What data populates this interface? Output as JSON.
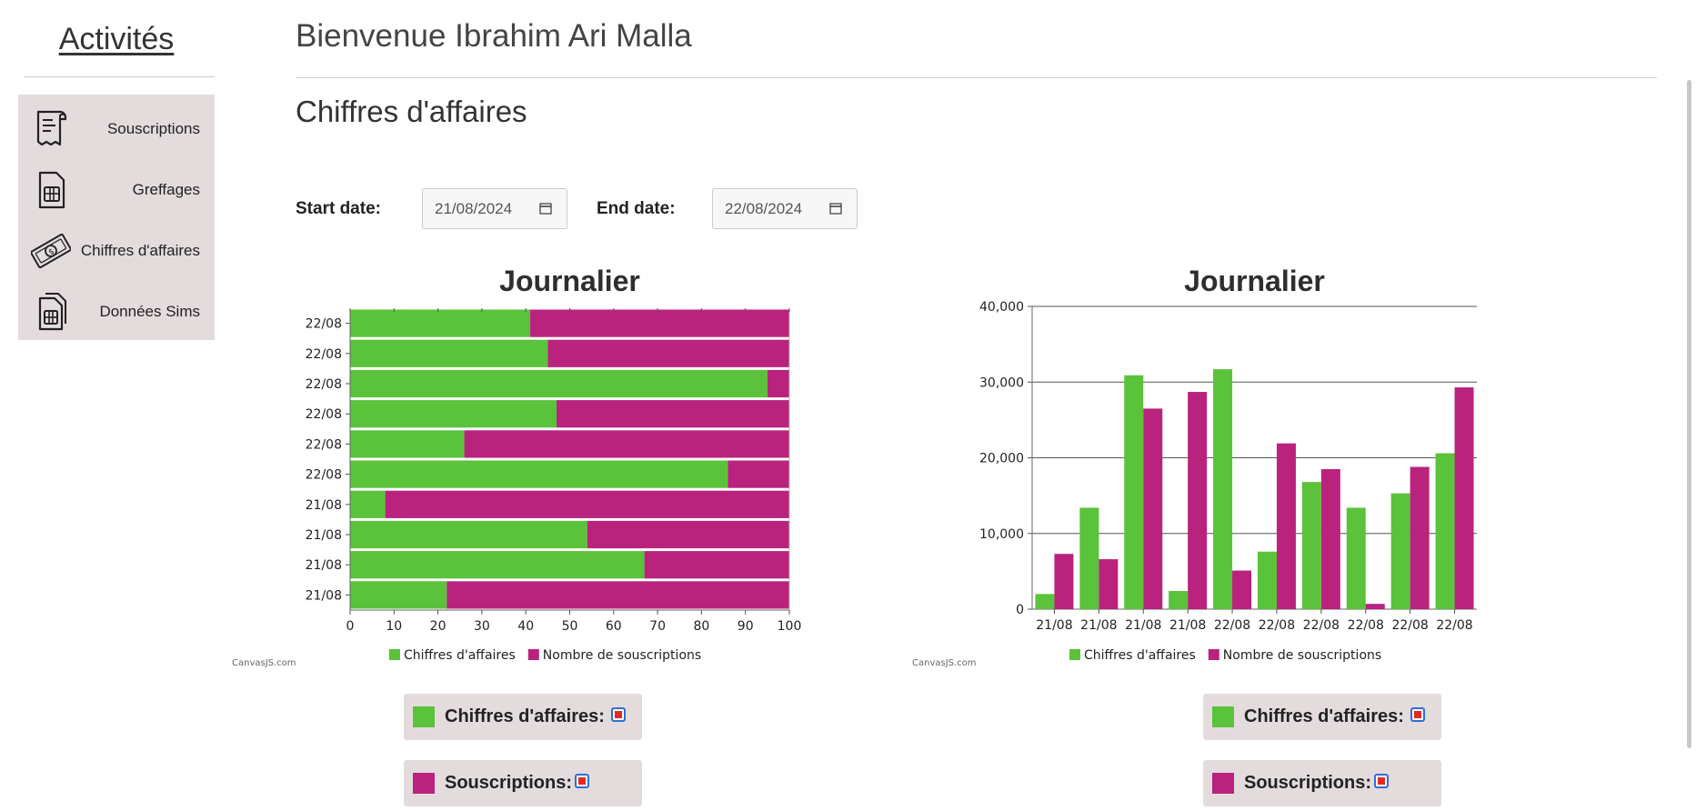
{
  "sidebar": {
    "title": "Activités",
    "items": [
      {
        "label": "Souscriptions",
        "icon": "receipt-icon"
      },
      {
        "label": "Greffages",
        "icon": "sim-card-icon"
      },
      {
        "label": "Chiffres d'affaires",
        "icon": "money-icon"
      },
      {
        "label": "Données Sims",
        "icon": "sim-cards-icon"
      }
    ]
  },
  "header": {
    "welcome": "Bienvenue Ibrahim Ari Malla"
  },
  "main": {
    "title": "Chiffres d'affaires",
    "start_label": "Start date:",
    "start_value": "21/08/2024",
    "end_label": "End date:",
    "end_value": "22/08/2024"
  },
  "colors": {
    "green": "#5bc23b",
    "magenta": "#b9237e",
    "checkbox_border": "#2e6fd6",
    "checkbox_fill": "#e32a22"
  },
  "credits": "CanvasJS.com",
  "chart_data": [
    {
      "type": "bar",
      "orientation": "horizontal",
      "stacking": "100%",
      "title": "Journalier",
      "categories": [
        "22/08",
        "22/08",
        "22/08",
        "22/08",
        "22/08",
        "22/08",
        "21/08",
        "21/08",
        "21/08",
        "21/08"
      ],
      "series": [
        {
          "name": "Chiffres d'affaires",
          "color": "#5bc23b",
          "values": [
            41,
            45,
            95,
            47,
            26,
            86,
            8,
            54,
            67,
            22
          ]
        },
        {
          "name": "Nombre de souscriptions",
          "color": "#b9237e",
          "values": [
            59,
            55,
            5,
            53,
            74,
            14,
            92,
            46,
            33,
            78
          ]
        }
      ],
      "xlim": [
        0,
        100
      ],
      "ticks": [
        "0",
        "10",
        "20",
        "30",
        "40",
        "50",
        "60",
        "70",
        "80",
        "90",
        "100"
      ],
      "legend": "bottom"
    },
    {
      "type": "bar",
      "orientation": "vertical",
      "title": "Journalier",
      "categories": [
        "21/08",
        "21/08",
        "21/08",
        "21/08",
        "22/08",
        "22/08",
        "22/08",
        "22/08",
        "22/08",
        "22/08"
      ],
      "series": [
        {
          "name": "Chiffres d'affaires",
          "color": "#5bc23b",
          "values": [
            2000,
            13400,
            30900,
            2400,
            31700,
            7600,
            16800,
            13400,
            15300,
            20600
          ]
        },
        {
          "name": "Nombre de souscriptions",
          "color": "#b9237e",
          "values": [
            7300,
            6600,
            26500,
            28700,
            5100,
            21900,
            18500,
            700,
            18800,
            29300
          ]
        }
      ],
      "ylim": [
        0,
        40000
      ],
      "ticks": [
        "0",
        "10,000",
        "20,000",
        "30,000",
        "40,000"
      ],
      "legend": "bottom"
    }
  ],
  "controls": [
    {
      "label": "Chiffres d'affaires:",
      "color": "#5bc23b"
    },
    {
      "label": "Souscriptions:",
      "color": "#b9237e"
    },
    {
      "label": "Chiffres d'affaires:",
      "color": "#5bc23b"
    },
    {
      "label": "Souscriptions:",
      "color": "#b9237e"
    }
  ]
}
